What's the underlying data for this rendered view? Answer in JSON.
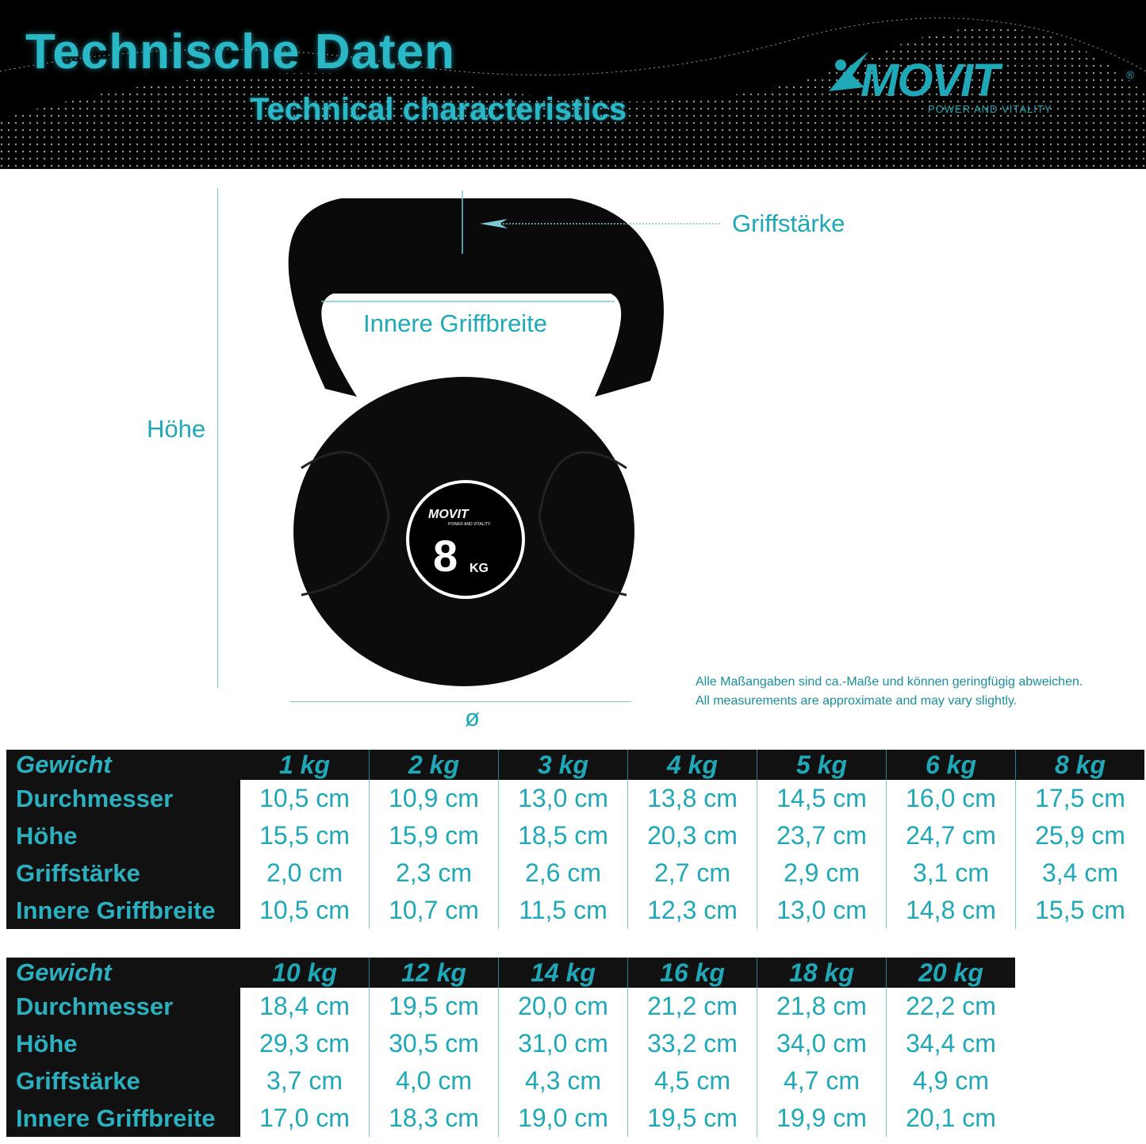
{
  "header": {
    "title_de": "Technische Daten",
    "title_en": "Technical characteristics",
    "logo": {
      "word": "MOVIT",
      "tagline": "POWER AND VITALITY",
      "registered": "®"
    }
  },
  "diagram": {
    "grip_thickness": "Griffstärke",
    "inner_grip_width": "Innere Griffbreite",
    "height": "Höhe",
    "diameter": "ø",
    "product_badge": {
      "brand": "MOVIT",
      "tagline": "POWER AND VITALITY",
      "weight": "8",
      "unit": "KG"
    }
  },
  "note": {
    "de": "Alle Maßangaben sind ca.-Maße und können geringfügig abweichen.",
    "en": "All measurements are approximate and may vary slightly."
  },
  "colors": {
    "accent": "#1fa8b8",
    "background_dark": "#111111"
  },
  "row_labels": [
    "Gewicht",
    "Durchmesser",
    "Höhe",
    "Griffstärke",
    "Innere Griffbreite"
  ],
  "tables": [
    {
      "weights": [
        "1 kg",
        "2 kg",
        "3 kg",
        "4 kg",
        "5 kg",
        "6 kg",
        "8 kg"
      ],
      "rows": [
        [
          "10,5 cm",
          "10,9 cm",
          "13,0 cm",
          "13,8 cm",
          "14,5 cm",
          "16,0 cm",
          "17,5 cm"
        ],
        [
          "15,5 cm",
          "15,9 cm",
          "18,5 cm",
          "20,3 cm",
          "23,7 cm",
          "24,7 cm",
          "25,9 cm"
        ],
        [
          "2,0 cm",
          "2,3 cm",
          "2,6 cm",
          "2,7 cm",
          "2,9 cm",
          "3,1 cm",
          "3,4 cm"
        ],
        [
          "10,5 cm",
          "10,7 cm",
          "11,5 cm",
          "12,3 cm",
          "13,0 cm",
          "14,8 cm",
          "15,5 cm"
        ]
      ]
    },
    {
      "weights": [
        "10 kg",
        "12 kg",
        "14 kg",
        "16 kg",
        "18 kg",
        "20 kg"
      ],
      "rows": [
        [
          "18,4 cm",
          "19,5 cm",
          "20,0 cm",
          "21,2 cm",
          "21,8 cm",
          "22,2 cm"
        ],
        [
          "29,3 cm",
          "30,5 cm",
          "31,0 cm",
          "33,2 cm",
          "34,0 cm",
          "34,4 cm"
        ],
        [
          "3,7 cm",
          "4,0 cm",
          "4,3 cm",
          "4,5 cm",
          "4,7 cm",
          "4,9 cm"
        ],
        [
          "17,0 cm",
          "18,3 cm",
          "19,0 cm",
          "19,5 cm",
          "19,9 cm",
          "20,1 cm"
        ]
      ]
    }
  ]
}
